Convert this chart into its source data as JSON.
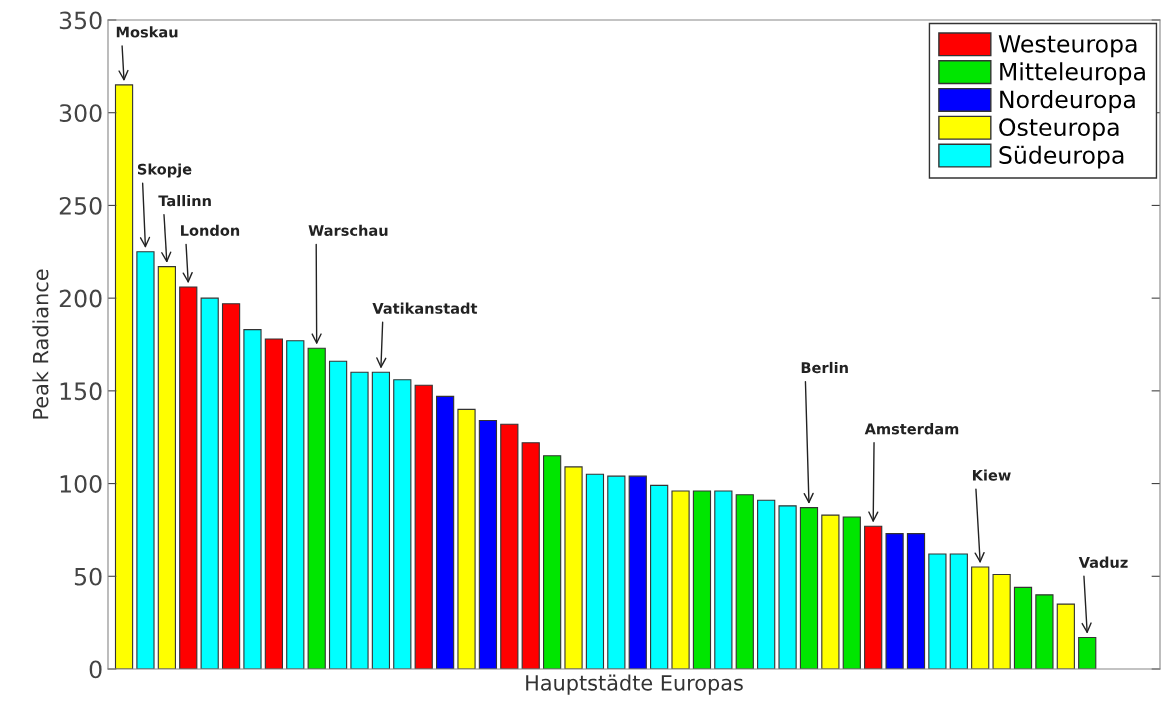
{
  "chart_data": {
    "type": "bar",
    "stacked": true,
    "xlabel": "Hauptstädte Europas",
    "ylabel": "Peak Radiance",
    "categories": [
      null,
      null,
      null,
      null,
      null,
      null,
      null,
      null,
      null,
      null,
      null,
      null,
      null,
      null,
      null,
      null,
      null,
      null,
      null,
      null,
      null,
      null,
      null,
      null,
      null,
      null,
      null,
      null,
      null,
      null,
      null,
      null,
      null,
      null,
      null,
      null,
      null,
      null,
      null,
      null,
      null,
      null,
      null,
      null,
      null,
      null
    ],
    "ylim": [
      0,
      350
    ],
    "yticks": [
      0,
      50,
      100,
      150,
      200,
      250,
      300,
      350
    ],
    "legend": "top right",
    "series": [
      {
        "name": "Westeuropa",
        "color": "#ff0000",
        "values": [
          null,
          null,
          null,
          206,
          null,
          197,
          null,
          178,
          null,
          null,
          null,
          null,
          null,
          null,
          153,
          null,
          null,
          null,
          132,
          122,
          null,
          null,
          null,
          null,
          null,
          null,
          null,
          null,
          null,
          null,
          null,
          null,
          null,
          null,
          null,
          77,
          null,
          null,
          null,
          null,
          null,
          null,
          null,
          null,
          null,
          null
        ]
      },
      {
        "name": "Mitteleuropa",
        "color": "#00e600",
        "values": [
          null,
          null,
          null,
          null,
          null,
          null,
          null,
          null,
          null,
          173,
          null,
          null,
          null,
          null,
          null,
          null,
          null,
          null,
          null,
          null,
          115,
          null,
          null,
          null,
          null,
          null,
          null,
          96,
          null,
          94,
          null,
          null,
          87,
          null,
          82,
          null,
          null,
          null,
          null,
          null,
          null,
          null,
          44,
          40,
          null,
          17
        ]
      },
      {
        "name": "Nordeuropa",
        "color": "#0000ff",
        "values": [
          null,
          null,
          null,
          null,
          null,
          null,
          null,
          null,
          null,
          null,
          null,
          null,
          null,
          null,
          null,
          147,
          null,
          134,
          null,
          null,
          null,
          null,
          null,
          null,
          104,
          null,
          null,
          null,
          null,
          null,
          null,
          null,
          null,
          null,
          null,
          null,
          73,
          73,
          null,
          null,
          null,
          null,
          null,
          null,
          null,
          null
        ]
      },
      {
        "name": "Osteuropa",
        "color": "#ffff00",
        "values": [
          315,
          null,
          217,
          null,
          null,
          null,
          null,
          null,
          null,
          null,
          null,
          null,
          null,
          null,
          null,
          null,
          140,
          null,
          null,
          null,
          null,
          109,
          null,
          null,
          null,
          null,
          96,
          null,
          null,
          null,
          null,
          null,
          null,
          83,
          null,
          null,
          null,
          null,
          null,
          null,
          55,
          51,
          null,
          null,
          35,
          null
        ]
      },
      {
        "name": "Südeuropa",
        "color": "#00ffff",
        "values": [
          null,
          225,
          null,
          null,
          200,
          null,
          183,
          null,
          177,
          null,
          166,
          160,
          160,
          156,
          null,
          null,
          null,
          null,
          null,
          null,
          null,
          null,
          105,
          104,
          null,
          99,
          null,
          null,
          96,
          null,
          91,
          88,
          null,
          null,
          null,
          null,
          null,
          null,
          62,
          62,
          null,
          null,
          null,
          null,
          null,
          null
        ]
      }
    ],
    "annotations": [
      "Moskau",
      "Skopje",
      "Tallinn",
      "London",
      "Warschau",
      "Vatikanstadt",
      "Berlin",
      "Amsterdam",
      "Kiew",
      "Vaduz"
    ]
  }
}
